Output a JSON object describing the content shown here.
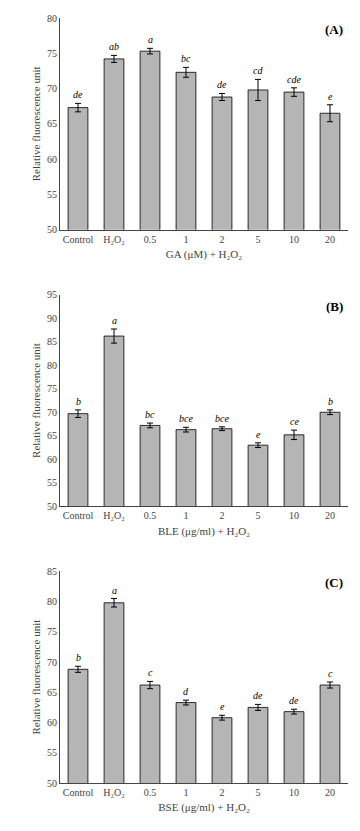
{
  "chart_data": [
    {
      "type": "bar",
      "title": "(A)",
      "categories": [
        "Control",
        "H₂O₂",
        "0.5",
        "1",
        "2",
        "5",
        "10",
        "20"
      ],
      "values": [
        67.3,
        74.2,
        75.3,
        72.3,
        68.8,
        69.8,
        69.5,
        66.5
      ],
      "errors": [
        0.6,
        0.5,
        0.4,
        0.7,
        0.5,
        1.5,
        0.6,
        1.2
      ],
      "annotations": [
        "de",
        "ab",
        "a",
        "bc",
        "de",
        "cd",
        "cde",
        "e"
      ],
      "xlabel": "GA (μM) + H₂O₂",
      "ylabel": "Relative fluorescence unit",
      "ylim": [
        50,
        80
      ],
      "yticks": [
        50,
        55,
        60,
        65,
        70,
        75,
        80
      ],
      "color": "#b5b5b5",
      "grid": false
    },
    {
      "type": "bar",
      "title": "(B)",
      "categories": [
        "Control",
        "H₂O₂",
        "0.5",
        "1",
        "2",
        "5",
        "10",
        "20"
      ],
      "values": [
        69.7,
        86.2,
        67.2,
        66.3,
        66.5,
        63.0,
        65.2,
        70.0
      ],
      "errors": [
        0.8,
        1.5,
        0.5,
        0.5,
        0.4,
        0.5,
        1.0,
        0.5
      ],
      "annotations": [
        "b",
        "a",
        "bc",
        "bce",
        "bce",
        "e",
        "ce",
        "b"
      ],
      "xlabel": "BLE (μg/ml) + H₂O₂",
      "ylabel": "Relative fluorescence unit",
      "ylim": [
        50,
        95
      ],
      "yticks": [
        50,
        55,
        60,
        65,
        70,
        75,
        80,
        85,
        90,
        95
      ],
      "color": "#b5b5b5",
      "grid": false
    },
    {
      "type": "bar",
      "title": "(C)",
      "categories": [
        "Control",
        "H₂O₂",
        "0.5",
        "1",
        "2",
        "5",
        "10",
        "20"
      ],
      "values": [
        68.8,
        79.8,
        66.2,
        63.3,
        60.8,
        62.5,
        61.8,
        66.2
      ],
      "errors": [
        0.5,
        0.7,
        0.6,
        0.4,
        0.4,
        0.5,
        0.4,
        0.5
      ],
      "annotations": [
        "b",
        "a",
        "c",
        "d",
        "e",
        "de",
        "de",
        "c"
      ],
      "xlabel": "BSE (μg/ml) + H₂O₂",
      "ylabel": "Relative fluorescence unit",
      "ylim": [
        50,
        85
      ],
      "yticks": [
        50,
        55,
        60,
        65,
        70,
        75,
        80,
        85
      ],
      "color": "#b5b5b5",
      "grid": false
    }
  ]
}
